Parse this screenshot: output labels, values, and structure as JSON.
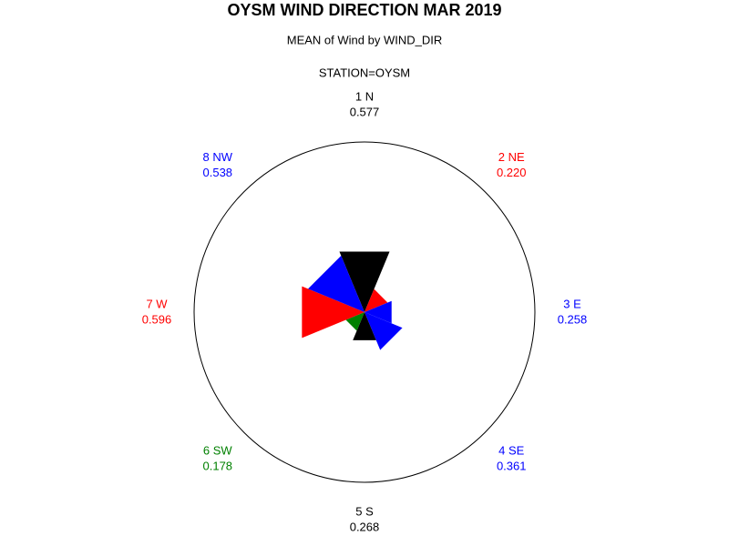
{
  "chart_data": {
    "type": "rose",
    "title": "OYSM WIND DIRECTION MAR 2019",
    "subtitle": "MEAN of Wind by WIND_DIR",
    "annotation": "STATION=OYSM",
    "categories": [
      "1 N",
      "2 NE",
      "3 E",
      "4 SE",
      "5 S",
      "6 SW",
      "7 W",
      "8 NW"
    ],
    "values": [
      0.577,
      0.22,
      0.258,
      0.361,
      0.268,
      0.178,
      0.596,
      0.538
    ],
    "value_labels": [
      "0.577",
      "0.220",
      "0.258",
      "0.361",
      "0.268",
      "0.178",
      "0.596",
      "0.538"
    ],
    "colors": [
      "#000000",
      "#ff0000",
      "#0000ff",
      "#0000ff",
      "#000000",
      "#008000",
      "#ff0000",
      "#0000ff"
    ],
    "rlim": [
      0,
      1.5
    ]
  }
}
